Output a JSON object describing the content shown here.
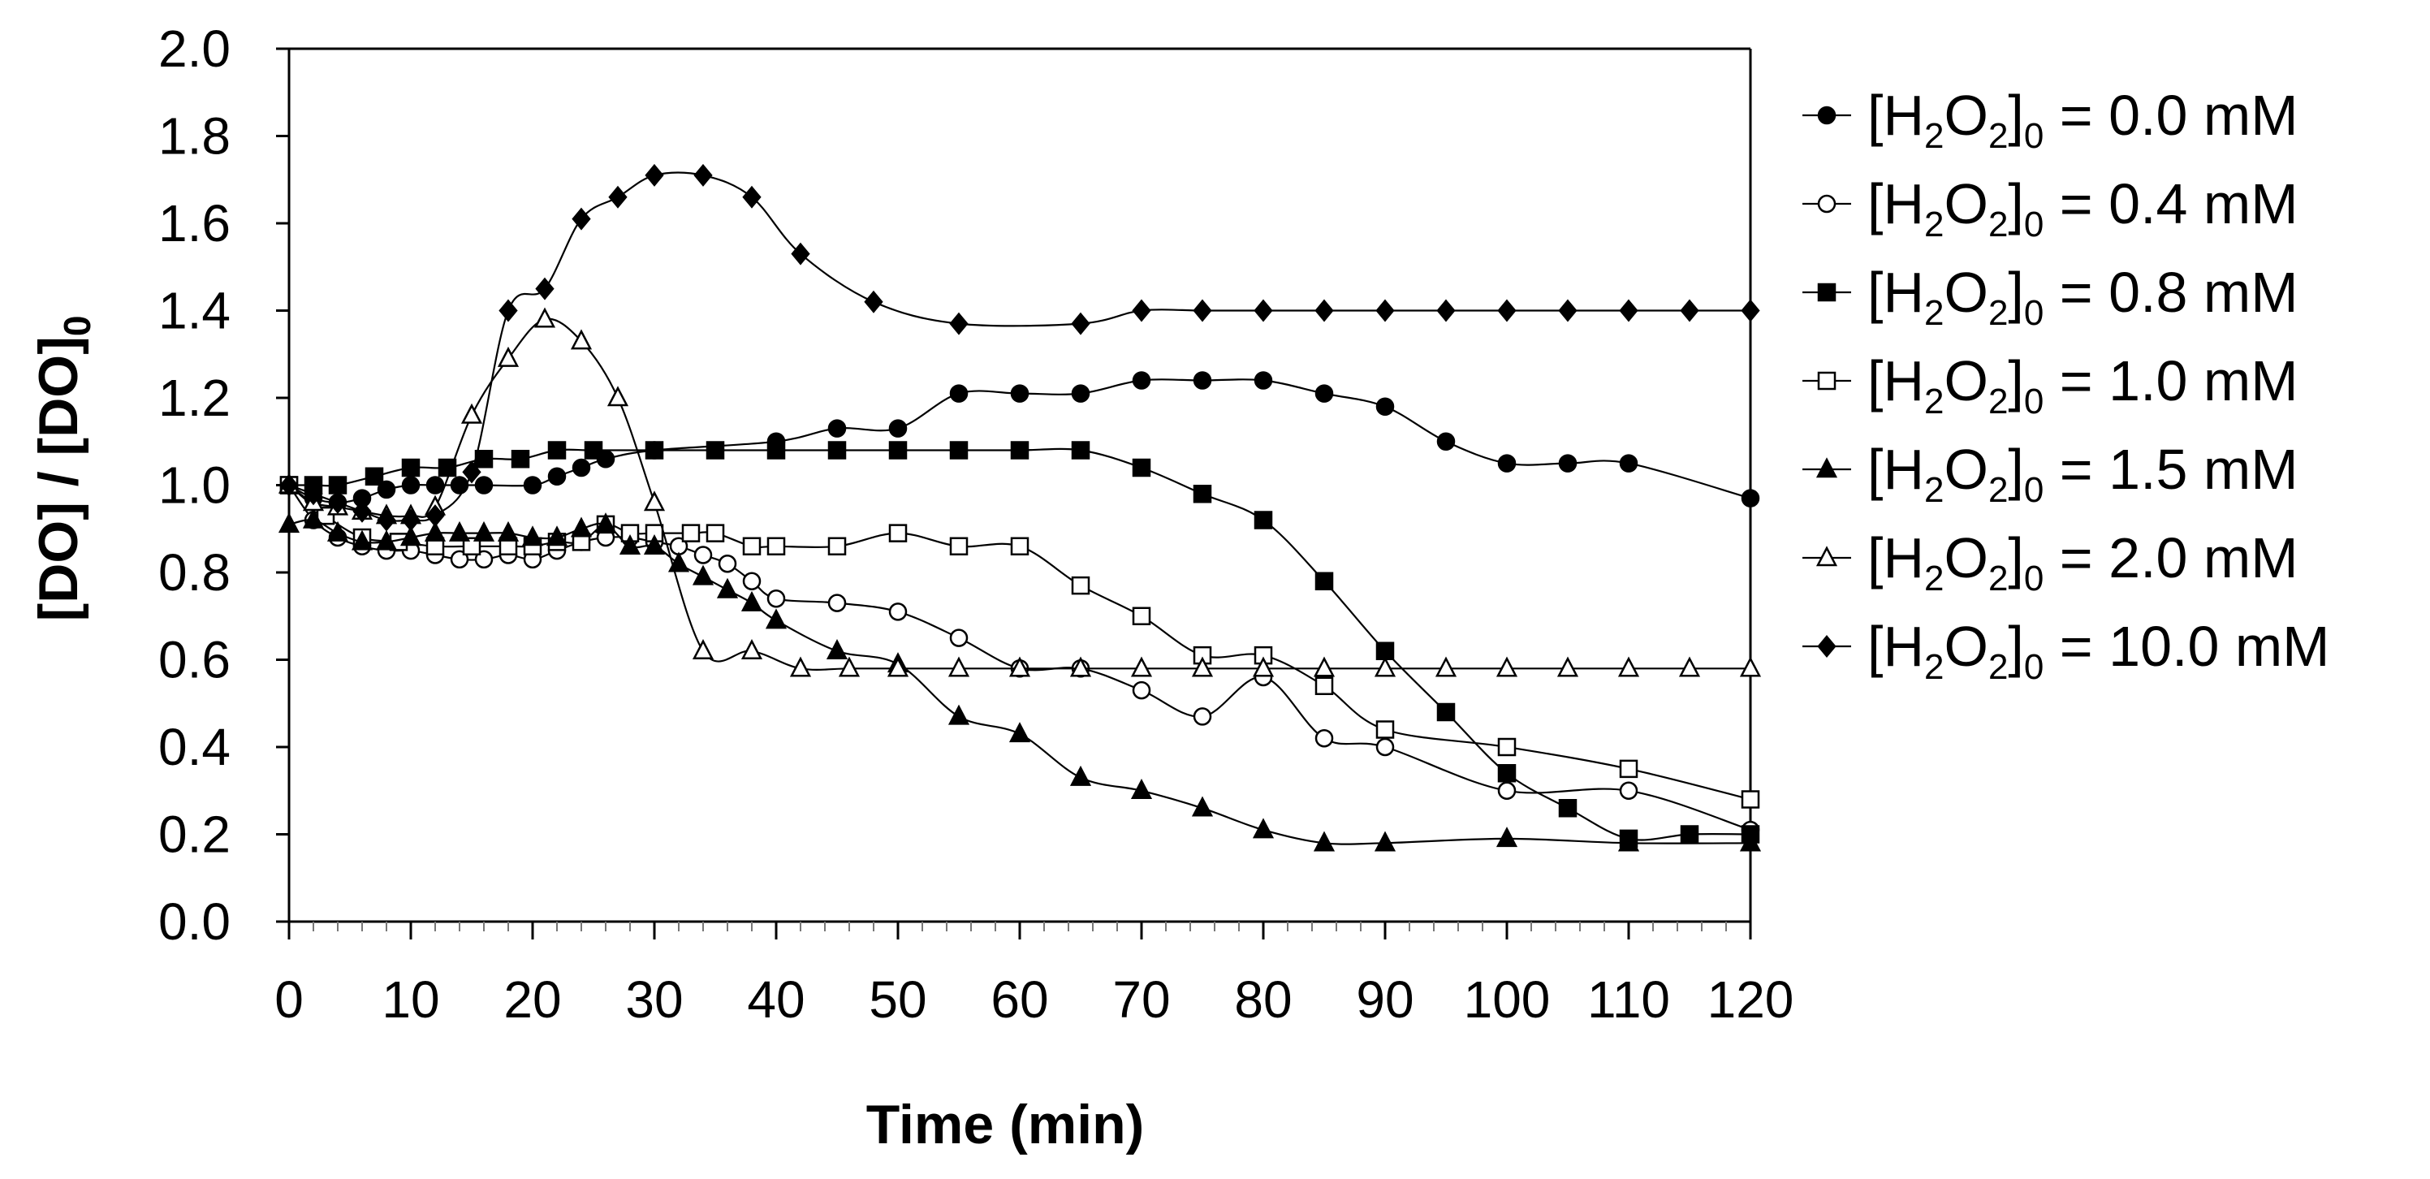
{
  "chart_data": {
    "type": "line",
    "title": "",
    "xlabel": "Time (min)",
    "ylabel_parts": {
      "main": "[DO] / [DO]",
      "sub": "0"
    },
    "xlim": [
      0,
      120
    ],
    "ylim": [
      0,
      2.0
    ],
    "x_ticks": [
      "0",
      "10",
      "20",
      "30",
      "40",
      "50",
      "60",
      "70",
      "80",
      "90",
      "100",
      "110",
      "120"
    ],
    "y_ticks": [
      "0.0",
      "0.2",
      "0.4",
      "0.6",
      "0.8",
      "1.0",
      "1.2",
      "1.4",
      "1.6",
      "1.8",
      "2.0"
    ],
    "grid": false,
    "legend_position": "right",
    "series": [
      {
        "name": "[H2O2]0 = 0.0 mM",
        "legend": {
          "pre": "[H",
          "s1": "2",
          "mid": "O",
          "s2": "2",
          "post": "]",
          "s3": "0",
          "tail": " = 0.0 mM"
        },
        "marker": "circle",
        "filled": true,
        "x": [
          0,
          2,
          4,
          6,
          8,
          10,
          12,
          14,
          16,
          20,
          22,
          24,
          26,
          30,
          40,
          45,
          50,
          55,
          60,
          65,
          70,
          75,
          80,
          85,
          90,
          95,
          100,
          105,
          110,
          120
        ],
        "y": [
          1.0,
          0.97,
          0.96,
          0.97,
          0.99,
          1.0,
          1.0,
          1.0,
          1.0,
          1.0,
          1.02,
          1.04,
          1.06,
          1.08,
          1.1,
          1.13,
          1.13,
          1.21,
          1.21,
          1.21,
          1.24,
          1.24,
          1.24,
          1.21,
          1.18,
          1.1,
          1.05,
          1.05,
          1.05,
          0.97
        ]
      },
      {
        "name": "[H2O2]0 = 0.4 mM",
        "legend": {
          "pre": "[H",
          "s1": "2",
          "mid": "O",
          "s2": "2",
          "post": "]",
          "s3": "0",
          "tail": " = 0.4 mM"
        },
        "marker": "circle",
        "filled": false,
        "x": [
          0,
          2,
          4,
          6,
          8,
          10,
          12,
          14,
          16,
          18,
          20,
          22,
          24,
          26,
          28,
          30,
          32,
          34,
          36,
          38,
          40,
          45,
          50,
          55,
          60,
          65,
          70,
          75,
          80,
          85,
          90,
          100,
          110,
          120
        ],
        "y": [
          1.0,
          0.92,
          0.88,
          0.86,
          0.85,
          0.85,
          0.84,
          0.83,
          0.83,
          0.84,
          0.83,
          0.85,
          0.87,
          0.88,
          0.88,
          0.87,
          0.86,
          0.84,
          0.82,
          0.78,
          0.74,
          0.73,
          0.71,
          0.65,
          0.58,
          0.58,
          0.53,
          0.47,
          0.56,
          0.42,
          0.4,
          0.3,
          0.3,
          0.21
        ]
      },
      {
        "name": "[H2O2]0 = 0.8 mM",
        "legend": {
          "pre": "[H",
          "s1": "2",
          "mid": "O",
          "s2": "2",
          "post": "]",
          "s3": "0",
          "tail": " = 0.8 mM"
        },
        "marker": "square",
        "filled": true,
        "x": [
          0,
          2,
          4,
          7,
          10,
          13,
          16,
          19,
          22,
          25,
          30,
          35,
          40,
          45,
          50,
          55,
          60,
          65,
          70,
          75,
          80,
          85,
          90,
          95,
          100,
          105,
          110,
          115,
          120
        ],
        "y": [
          1.0,
          1.0,
          1.0,
          1.02,
          1.04,
          1.04,
          1.06,
          1.06,
          1.08,
          1.08,
          1.08,
          1.08,
          1.08,
          1.08,
          1.08,
          1.08,
          1.08,
          1.08,
          1.04,
          0.98,
          0.92,
          0.78,
          0.62,
          0.48,
          0.34,
          0.26,
          0.19,
          0.2,
          0.2
        ]
      },
      {
        "name": "[H2O2]0 = 1.0 mM",
        "legend": {
          "pre": "[H",
          "s1": "2",
          "mid": "O",
          "s2": "2",
          "post": "]",
          "s3": "0",
          "tail": " = 1.0 mM"
        },
        "marker": "square",
        "filled": false,
        "x": [
          0,
          3,
          6,
          9,
          12,
          15,
          18,
          20,
          22,
          24,
          26,
          28,
          30,
          33,
          35,
          38,
          40,
          45,
          50,
          55,
          60,
          65,
          70,
          75,
          80,
          85,
          90,
          100,
          110,
          120
        ],
        "y": [
          1.0,
          0.93,
          0.88,
          0.87,
          0.86,
          0.86,
          0.86,
          0.86,
          0.87,
          0.87,
          0.91,
          0.89,
          0.89,
          0.89,
          0.89,
          0.86,
          0.86,
          0.86,
          0.89,
          0.86,
          0.86,
          0.77,
          0.7,
          0.61,
          0.61,
          0.54,
          0.44,
          0.4,
          0.35,
          0.28
        ]
      },
      {
        "name": "[H2O2]0 = 1.5 mM",
        "legend": {
          "pre": "[H",
          "s1": "2",
          "mid": "O",
          "s2": "2",
          "post": "]",
          "s3": "0",
          "tail": " = 1.5 mM"
        },
        "marker": "triangle",
        "filled": true,
        "x": [
          0,
          2,
          4,
          6,
          8,
          10,
          12,
          14,
          16,
          18,
          20,
          22,
          24,
          26,
          28,
          30,
          32,
          34,
          36,
          38,
          40,
          45,
          50,
          55,
          60,
          65,
          70,
          75,
          80,
          85,
          90,
          100,
          110,
          120
        ],
        "y": [
          0.91,
          0.92,
          0.89,
          0.87,
          0.87,
          0.88,
          0.89,
          0.89,
          0.89,
          0.89,
          0.88,
          0.88,
          0.9,
          0.91,
          0.86,
          0.86,
          0.82,
          0.79,
          0.76,
          0.73,
          0.69,
          0.62,
          0.59,
          0.47,
          0.43,
          0.33,
          0.3,
          0.26,
          0.21,
          0.18,
          0.18,
          0.19,
          0.18,
          0.18
        ]
      },
      {
        "name": "[H2O2]0 = 2.0 mM",
        "legend": {
          "pre": "[H",
          "s1": "2",
          "mid": "O",
          "s2": "2",
          "post": "]",
          "s3": "0",
          "tail": " = 2.0 mM"
        },
        "marker": "triangle",
        "filled": false,
        "x": [
          0,
          2,
          4,
          6,
          8,
          10,
          12,
          15,
          18,
          21,
          24,
          27,
          30,
          34,
          38,
          42,
          46,
          50,
          55,
          60,
          65,
          70,
          75,
          80,
          85,
          90,
          95,
          100,
          105,
          110,
          115,
          120
        ],
        "y": [
          1.0,
          0.96,
          0.95,
          0.94,
          0.93,
          0.93,
          0.95,
          1.16,
          1.29,
          1.38,
          1.33,
          1.2,
          0.96,
          0.62,
          0.62,
          0.58,
          0.58,
          0.58,
          0.58,
          0.58,
          0.58,
          0.58,
          0.58,
          0.58,
          0.58,
          0.58,
          0.58,
          0.58,
          0.58,
          0.58,
          0.58,
          0.58
        ]
      },
      {
        "name": "[H2O2]0 = 10.0 mM",
        "legend": {
          "pre": "[H",
          "s1": "2",
          "mid": "O",
          "s2": "2",
          "post": "]",
          "s3": "0",
          "tail": " = 10.0 mM"
        },
        "marker": "diamond",
        "filled": true,
        "x": [
          0,
          2,
          4,
          6,
          8,
          10,
          12,
          15,
          18,
          21,
          24,
          27,
          30,
          34,
          38,
          42,
          48,
          55,
          65,
          70,
          75,
          80,
          85,
          90,
          95,
          100,
          105,
          110,
          115,
          120
        ],
        "y": [
          1.0,
          0.98,
          0.96,
          0.94,
          0.92,
          0.92,
          0.93,
          1.03,
          1.4,
          1.45,
          1.61,
          1.66,
          1.71,
          1.71,
          1.66,
          1.53,
          1.42,
          1.37,
          1.37,
          1.4,
          1.4,
          1.4,
          1.4,
          1.4,
          1.4,
          1.4,
          1.4,
          1.4,
          1.4,
          1.4
        ]
      }
    ]
  }
}
